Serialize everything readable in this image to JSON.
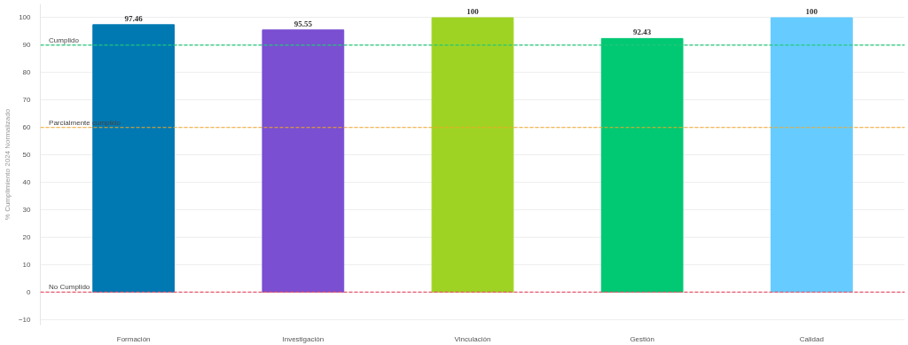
{
  "chart_data": {
    "type": "bar",
    "ylabel": "% Cumplimiento 2024 Normalizado",
    "categories": [
      "Formación",
      "Investigación",
      "Vinculación",
      "Gestión",
      "Calidad"
    ],
    "values": [
      97.46,
      95.55,
      100,
      92.43,
      100
    ],
    "colors": [
      "#0079b3",
      "#7a4fd1",
      "#9fd323",
      "#00c873",
      "#66ccff"
    ],
    "data_labels": true,
    "ylim": [
      -12,
      105
    ],
    "yticks": [
      -10,
      0,
      10,
      20,
      30,
      40,
      50,
      60,
      70,
      80,
      90,
      100
    ],
    "grid": "y",
    "ref_lines": [
      {
        "axis": "y",
        "value": 90,
        "label": "Cumplido",
        "color": "#22c77a",
        "line_style": "dashed"
      },
      {
        "axis": "y",
        "value": 60,
        "label": "Parcialmente cumplido",
        "color": "#f5a623",
        "line_style": "dashed"
      },
      {
        "axis": "y",
        "value": 0,
        "label": "No Cumplido",
        "color": "#e8566c",
        "line_style": "dashed"
      }
    ]
  }
}
